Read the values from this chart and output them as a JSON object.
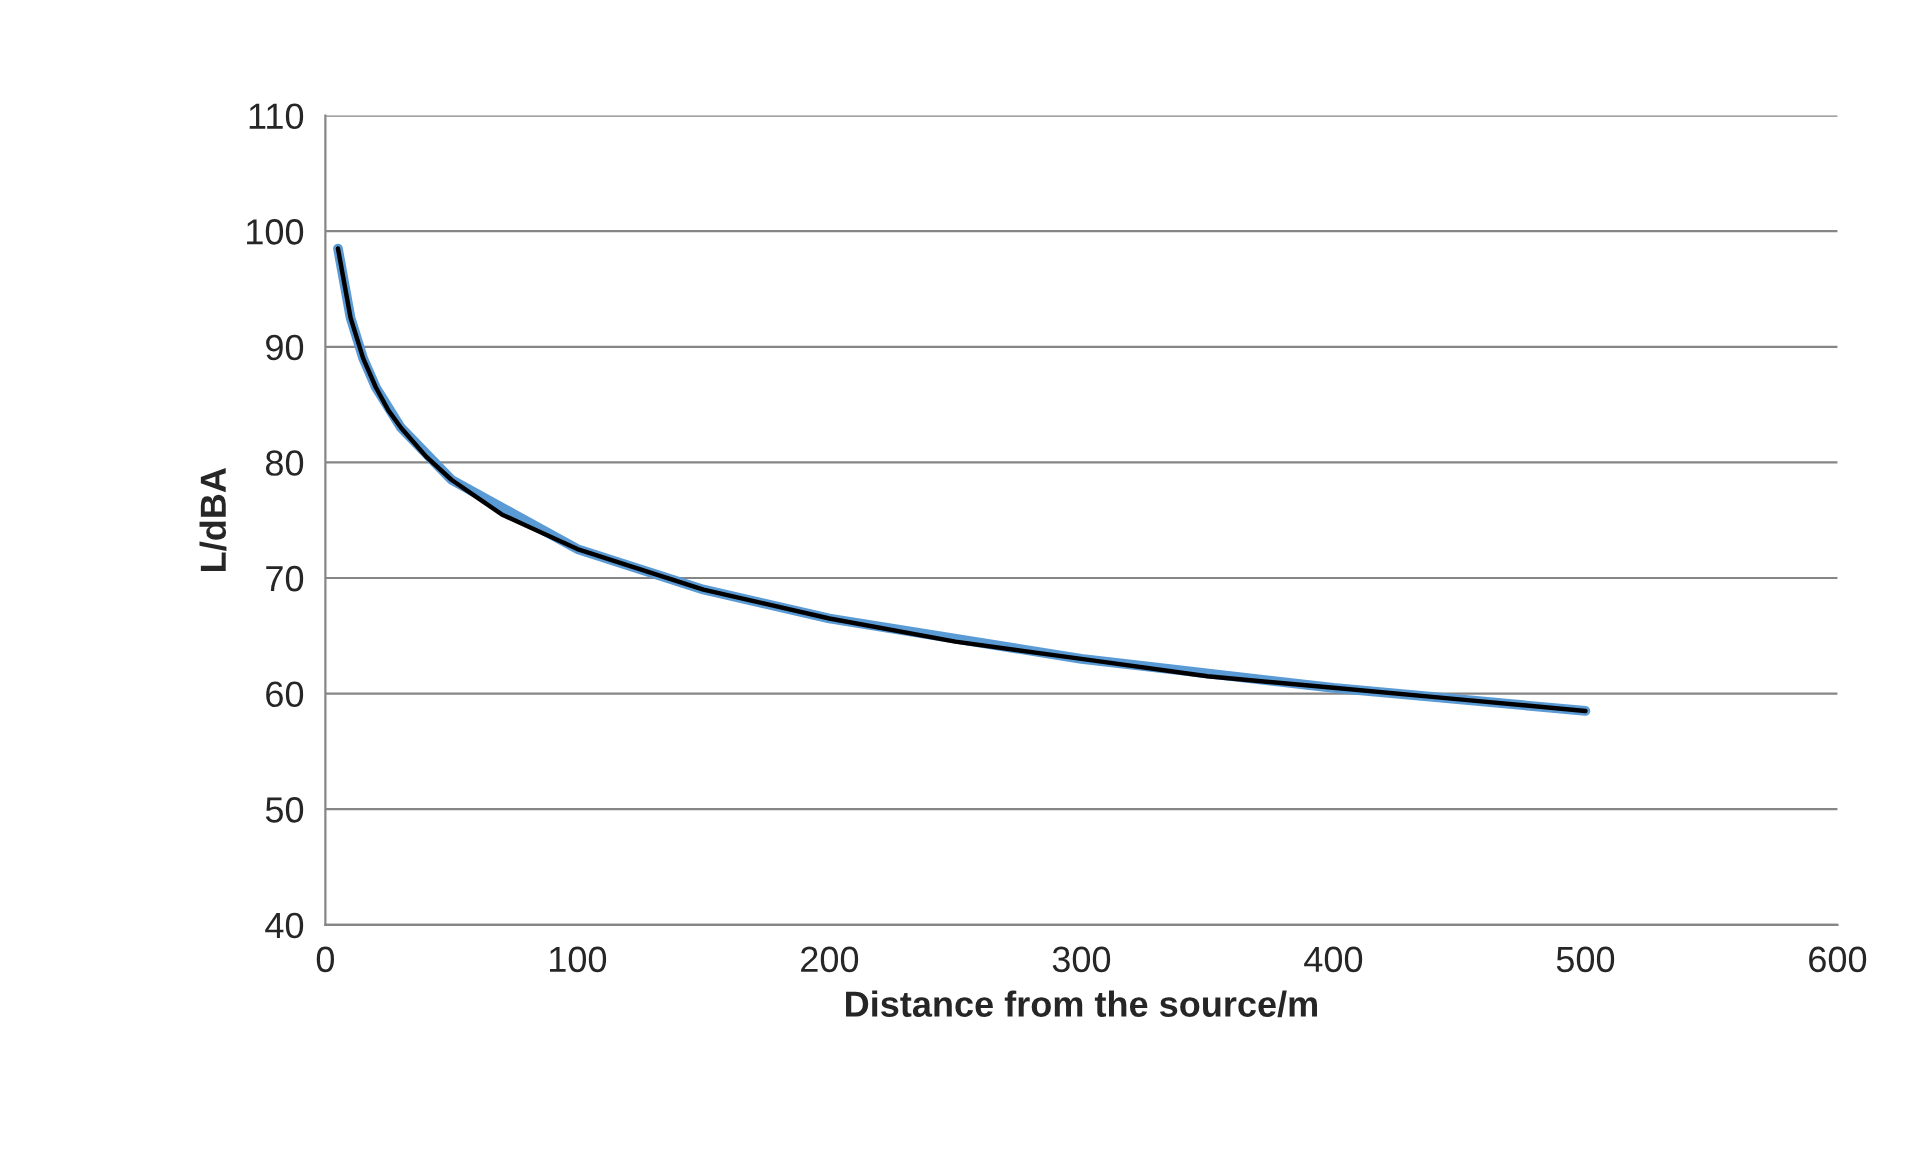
{
  "chart_data": {
    "type": "line",
    "xlabel": "Distance from the source/m",
    "ylabel": "L/dBA",
    "xlim": [
      0,
      600
    ],
    "xticks": [
      0,
      100,
      200,
      300,
      400,
      500,
      600
    ],
    "ylim": [
      40,
      110
    ],
    "yticks": [
      40,
      50,
      60,
      70,
      80,
      90,
      100,
      110
    ],
    "grid": "y",
    "legend": false,
    "marker": "none",
    "line_style": "solid",
    "series": [
      {
        "color": "#5b9bd5",
        "x": [
          5,
          10,
          15,
          20,
          30,
          50,
          100,
          150,
          200,
          300,
          400,
          500
        ],
        "values": [
          98.5,
          92.5,
          89,
          86.5,
          83,
          78.5,
          72.5,
          69,
          66.5,
          63,
          60.5,
          58.5
        ]
      },
      {
        "color": "#000000",
        "x": [
          5,
          10,
          15,
          20,
          25,
          30,
          40,
          50,
          60,
          70,
          80,
          90,
          100,
          150,
          200,
          250,
          300,
          350,
          400,
          450,
          500
        ],
        "values": [
          98.5,
          92.5,
          89,
          86.5,
          84.5,
          83,
          80.5,
          78.5,
          77,
          75.5,
          74.5,
          73.5,
          72.5,
          69,
          66.5,
          64.5,
          63,
          61.5,
          60.5,
          59.5,
          58.5
        ]
      }
    ]
  }
}
